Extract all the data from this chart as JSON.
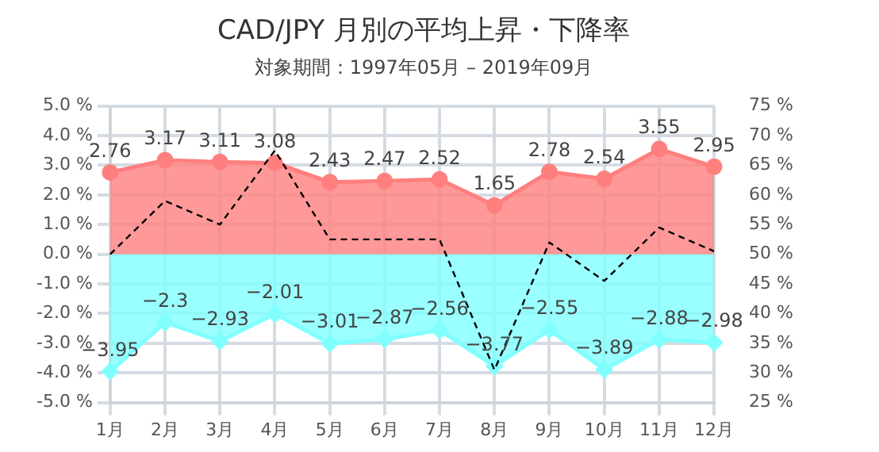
{
  "chart_data": {
    "type": "area",
    "title": "CAD/JPY 月別の平均上昇・下降率",
    "subtitle": "対象期間：1997年05月 – 2019年09月",
    "categories": [
      "1月",
      "2月",
      "3月",
      "4月",
      "5月",
      "6月",
      "7月",
      "8月",
      "9月",
      "10月",
      "11月",
      "12月"
    ],
    "series": [
      {
        "color": "#ff7f7f",
        "marker": "circle",
        "values": [
          2.76,
          3.17,
          3.11,
          3.08,
          2.43,
          2.47,
          2.52,
          1.65,
          2.78,
          2.54,
          3.55,
          2.95
        ],
        "value_labels": [
          "2.76",
          "3.17",
          "3.11",
          "3.08",
          "2.43",
          "2.47",
          "2.52",
          "1.65",
          "2.78",
          "2.54",
          "3.55",
          "2.95"
        ]
      },
      {
        "color": "#80ffff",
        "marker": "diamond",
        "values": [
          -3.95,
          -2.3,
          -2.93,
          -2.01,
          -3.01,
          -2.87,
          -2.56,
          -3.77,
          -2.55,
          -3.89,
          -2.88,
          -2.98
        ],
        "value_labels": [
          "−3.95",
          "−2.3",
          "−2.93",
          "−2.01",
          "−3.01",
          "−2.87",
          "−2.56",
          "−3.77",
          "−2.55",
          "−3.89",
          "−2.88",
          "−2.98"
        ]
      },
      {
        "type": "line",
        "axis": "y2",
        "color": "#000000",
        "marker": "none",
        "line_style": "dashed",
        "values": [
          50,
          59,
          55,
          67.5,
          52.5,
          52.5,
          52.5,
          30.5,
          52,
          45.5,
          54.5,
          50.5
        ]
      }
    ],
    "ylim": [
      -5,
      5
    ],
    "yticks": [
      {
        "value": -5,
        "label": "-5.0 %"
      },
      {
        "value": -4,
        "label": "-4.0 %"
      },
      {
        "value": -3,
        "label": "-3.0 %"
      },
      {
        "value": -2,
        "label": "-2.0 %"
      },
      {
        "value": -1,
        "label": "-1.0 %"
      },
      {
        "value": 0,
        "label": "0.0 %"
      },
      {
        "value": 1,
        "label": "1.0 %"
      },
      {
        "value": 2,
        "label": "2.0 %"
      },
      {
        "value": 3,
        "label": "3.0 %"
      },
      {
        "value": 4,
        "label": "4.0 %"
      },
      {
        "value": 5,
        "label": "5.0 %"
      }
    ],
    "y2lim": [
      25,
      75
    ],
    "y2ticks": [
      {
        "value": 25,
        "label": "25 %"
      },
      {
        "value": 30,
        "label": "30 %"
      },
      {
        "value": 35,
        "label": "35 %"
      },
      {
        "value": 40,
        "label": "40 %"
      },
      {
        "value": 45,
        "label": "45 %"
      },
      {
        "value": 50,
        "label": "50 %"
      },
      {
        "value": 55,
        "label": "55 %"
      },
      {
        "value": 60,
        "label": "60 %"
      },
      {
        "value": 65,
        "label": "65 %"
      },
      {
        "value": 70,
        "label": "70 %"
      },
      {
        "value": 75,
        "label": "75 %"
      }
    ],
    "grid": true,
    "legend": false
  }
}
